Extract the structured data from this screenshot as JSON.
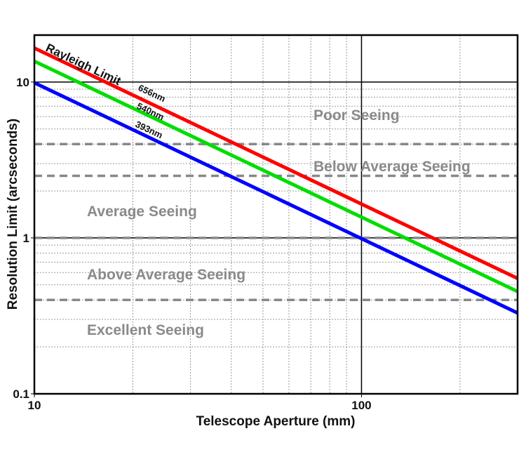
{
  "chart_data": {
    "type": "line",
    "xlabel": "Telescope Aperture (mm)",
    "ylabel": "Resolution Limit (arcseconds)",
    "xscale": "log",
    "yscale": "log",
    "xlim": [
      10,
      300
    ],
    "ylim": [
      0.1,
      20
    ],
    "xticks": [
      {
        "v": 10,
        "label": "10"
      },
      {
        "v": 100,
        "label": "100"
      }
    ],
    "yticks": [
      {
        "v": 0.1,
        "label": "0.1"
      },
      {
        "v": 1,
        "label": "1"
      },
      {
        "v": 10,
        "label": "10"
      }
    ],
    "grid": true,
    "annotation": "Rayleigh Limit",
    "series": [
      {
        "name": "656nm",
        "color": "#ff0000",
        "x": [
          10,
          300
        ],
        "y": [
          16.5,
          0.55
        ]
      },
      {
        "name": "540nm",
        "color": "#00dd00",
        "x": [
          10,
          300
        ],
        "y": [
          13.6,
          0.453
        ]
      },
      {
        "name": "393nm",
        "color": "#0000ff",
        "x": [
          10,
          300
        ],
        "y": [
          9.89,
          0.33
        ]
      }
    ],
    "thresholds": {
      "values": [
        4,
        2.5,
        1,
        0.4
      ],
      "color": "#888888"
    },
    "zones": [
      {
        "label": "Poor Seeing",
        "x": 18.1,
        "y": 6.2
      },
      {
        "label": "Below Average Seeing",
        "x": 18.1,
        "y": 2.9
      },
      {
        "label": "Average Seeing",
        "x": 5.2,
        "y": 1.5
      },
      {
        "label": "Above Average Seeing",
        "x": 5.2,
        "y": 0.59
      },
      {
        "label": "Excellent Seeing",
        "x": 5.2,
        "y": 0.26
      }
    ]
  }
}
